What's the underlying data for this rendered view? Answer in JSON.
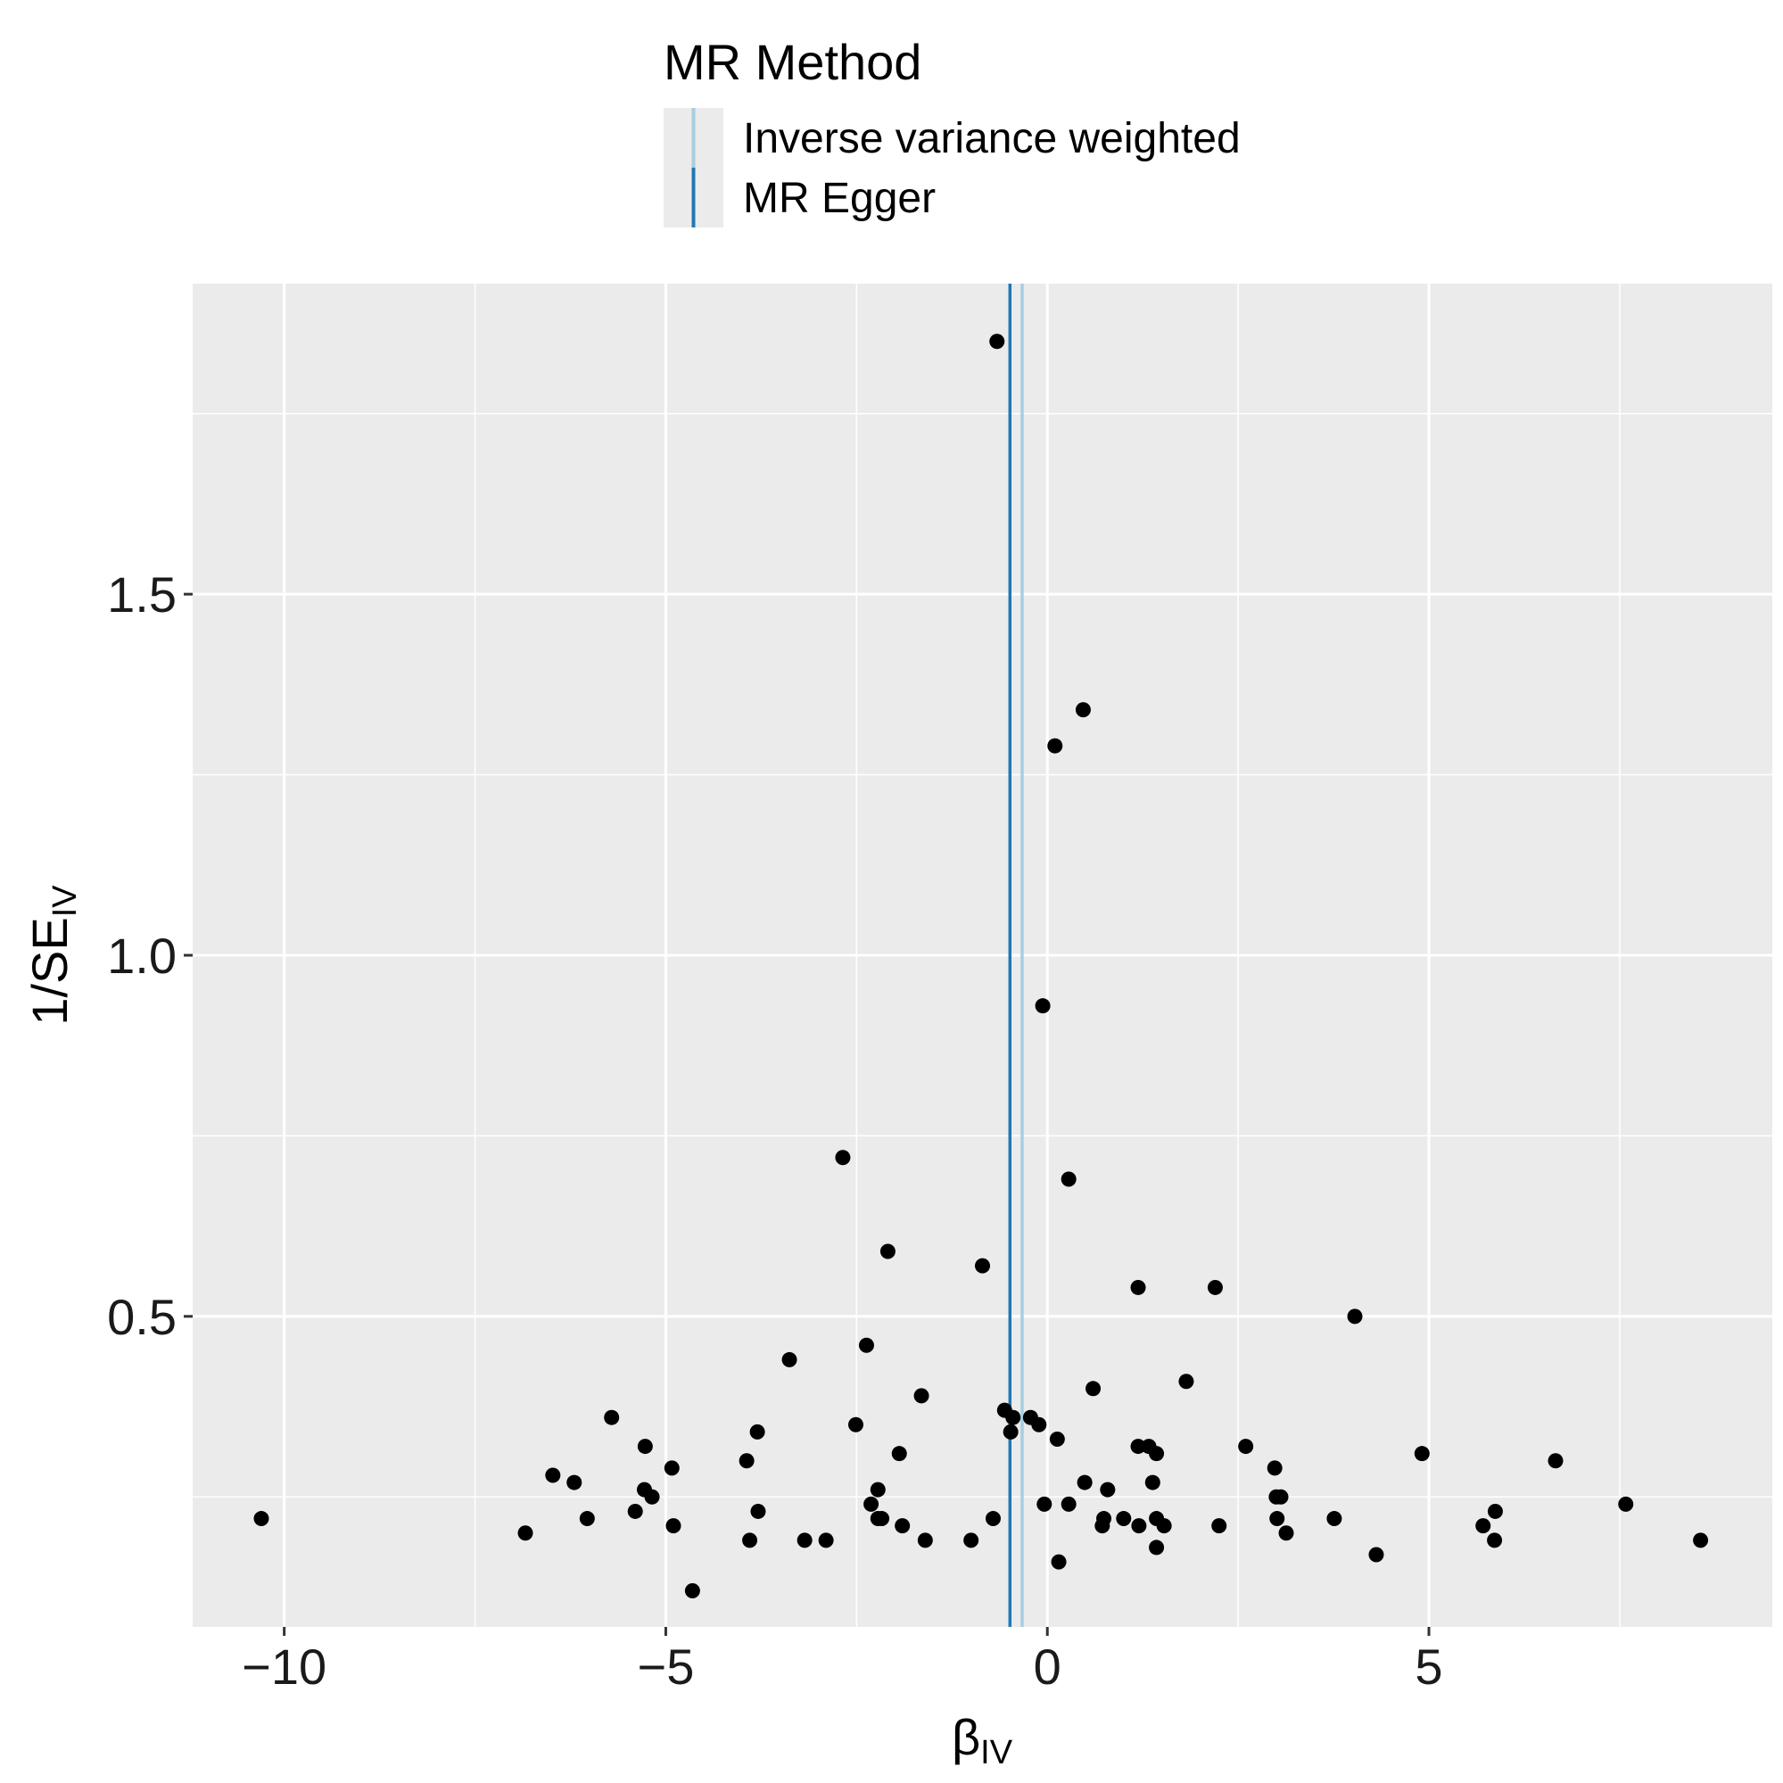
{
  "chart_data": {
    "type": "scatter",
    "legend": {
      "title": "MR Method",
      "placement": "top",
      "entries": [
        {
          "name": "Inverse variance weighted",
          "color": "#a6cee3"
        },
        {
          "name": "MR Egger",
          "color": "#1f78b4"
        }
      ]
    },
    "xlabel": {
      "main": "β",
      "sub": "IV"
    },
    "ylabel": {
      "main": "1/SE",
      "sub": "IV"
    },
    "xlim": [
      -11.2,
      9.5
    ],
    "ylim": [
      0.07,
      1.93
    ],
    "x_ticks": [
      {
        "value": -10,
        "label": "−10"
      },
      {
        "value": -5,
        "label": "−5"
      },
      {
        "value": 0,
        "label": "0"
      },
      {
        "value": 5,
        "label": "5"
      }
    ],
    "y_ticks": [
      {
        "value": 0.5,
        "label": "0.5"
      },
      {
        "value": 1.0,
        "label": "1.0"
      },
      {
        "value": 1.5,
        "label": "1.5"
      }
    ],
    "x_minor": [
      -7.5,
      -2.5,
      2.5,
      7.5
    ],
    "y_minor": [
      0.25,
      0.75,
      1.25,
      1.75
    ],
    "grid": true,
    "background": "#ebebeb",
    "point_color": "#000000",
    "vlines": [
      {
        "name": "Inverse variance weighted",
        "x": -0.33,
        "color": "#a6cee3"
      },
      {
        "name": "MR Egger",
        "x": -0.49,
        "color": "#1f78b4"
      }
    ],
    "points": [
      [
        -0.66,
        1.85
      ],
      [
        0.47,
        1.34
      ],
      [
        0.1,
        1.29
      ],
      [
        -0.06,
        0.93
      ],
      [
        -2.68,
        0.72
      ],
      [
        0.28,
        0.69
      ],
      [
        -2.09,
        0.59
      ],
      [
        -0.85,
        0.57
      ],
      [
        1.19,
        0.54
      ],
      [
        2.2,
        0.54
      ],
      [
        4.03,
        0.5
      ],
      [
        -2.37,
        0.46
      ],
      [
        -3.38,
        0.44
      ],
      [
        1.82,
        0.41
      ],
      [
        0.6,
        0.4
      ],
      [
        -1.65,
        0.39
      ],
      [
        -5.71,
        0.36
      ],
      [
        -0.56,
        0.37
      ],
      [
        -0.45,
        0.36
      ],
      [
        -0.22,
        0.36
      ],
      [
        -0.11,
        0.35
      ],
      [
        -2.51,
        0.35
      ],
      [
        -3.8,
        0.34
      ],
      [
        -0.48,
        0.34
      ],
      [
        0.13,
        0.33
      ],
      [
        -5.27,
        0.32
      ],
      [
        1.19,
        0.32
      ],
      [
        1.33,
        0.32
      ],
      [
        2.6,
        0.32
      ],
      [
        -1.94,
        0.31
      ],
      [
        1.43,
        0.31
      ],
      [
        4.91,
        0.31
      ],
      [
        6.66,
        0.3
      ],
      [
        -3.94,
        0.3
      ],
      [
        -4.92,
        0.29
      ],
      [
        2.98,
        0.29
      ],
      [
        -6.48,
        0.28
      ],
      [
        -6.2,
        0.27
      ],
      [
        -5.28,
        0.26
      ],
      [
        0.49,
        0.27
      ],
      [
        0.79,
        0.26
      ],
      [
        1.38,
        0.27
      ],
      [
        -2.22,
        0.26
      ],
      [
        -5.18,
        0.25
      ],
      [
        3.0,
        0.25
      ],
      [
        3.06,
        0.25
      ],
      [
        -2.31,
        0.24
      ],
      [
        -0.04,
        0.24
      ],
      [
        0.28,
        0.24
      ],
      [
        5.87,
        0.23
      ],
      [
        7.58,
        0.24
      ],
      [
        -5.4,
        0.23
      ],
      [
        -3.79,
        0.23
      ],
      [
        -2.22,
        0.22
      ],
      [
        -2.17,
        0.22
      ],
      [
        -0.71,
        0.22
      ],
      [
        0.74,
        0.22
      ],
      [
        1.0,
        0.22
      ],
      [
        1.43,
        0.22
      ],
      [
        3.01,
        0.22
      ],
      [
        3.76,
        0.22
      ],
      [
        -10.3,
        0.22
      ],
      [
        -6.03,
        0.22
      ],
      [
        1.2,
        0.21
      ],
      [
        1.53,
        0.21
      ],
      [
        5.71,
        0.21
      ],
      [
        -6.84,
        0.2
      ],
      [
        -4.9,
        0.21
      ],
      [
        -1.9,
        0.21
      ],
      [
        0.72,
        0.21
      ],
      [
        2.25,
        0.21
      ],
      [
        3.13,
        0.2
      ],
      [
        -3.18,
        0.19
      ],
      [
        -2.9,
        0.19
      ],
      [
        -3.9,
        0.19
      ],
      [
        -1.6,
        0.19
      ],
      [
        -1.0,
        0.19
      ],
      [
        5.86,
        0.19
      ],
      [
        8.56,
        0.19
      ],
      [
        1.43,
        0.18
      ],
      [
        4.31,
        0.17
      ],
      [
        0.15,
        0.16
      ],
      [
        -4.65,
        0.12
      ]
    ]
  }
}
